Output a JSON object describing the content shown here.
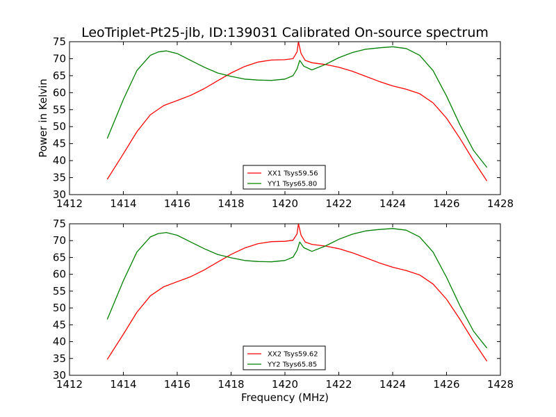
{
  "title": "LeoTriplet-Pt25-jlb, ID:139031 Calibrated On-source spectrum",
  "ylabel": "Power in Kelvin",
  "xlabel": "Frequency (MHz)",
  "colors": {
    "xx": "#ff0000",
    "yy": "#008000",
    "frame": "#000000"
  },
  "chart_data": [
    {
      "type": "line",
      "title": "LeoTriplet-Pt25-jlb, ID:139031 Calibrated On-source spectrum",
      "xlabel": "",
      "ylabel": "Power in Kelvin",
      "xlim": [
        1412,
        1428
      ],
      "ylim": [
        30,
        75
      ],
      "xticks": [
        "1412",
        "1414",
        "1416",
        "1418",
        "1420",
        "1422",
        "1424",
        "1426",
        "1428"
      ],
      "yticks": [
        "30",
        "35",
        "40",
        "45",
        "50",
        "55",
        "60",
        "65",
        "70",
        "75"
      ],
      "legend_position": "bottom-center",
      "series": [
        {
          "name": "XX1 Tsys59.56",
          "color": "#ff0000",
          "x": [
            1413.4,
            1414.0,
            1414.5,
            1415.0,
            1415.5,
            1416.0,
            1416.5,
            1417.0,
            1417.5,
            1418.0,
            1418.5,
            1419.0,
            1419.5,
            1420.0,
            1420.3,
            1420.45,
            1420.5,
            1420.6,
            1420.75,
            1421.0,
            1421.5,
            1422.0,
            1422.5,
            1423.0,
            1423.5,
            1424.0,
            1424.5,
            1425.0,
            1425.5,
            1426.0,
            1426.5,
            1427.0,
            1427.5
          ],
          "y": [
            34.5,
            42.0,
            48.5,
            53.5,
            56.2,
            57.7,
            59.2,
            61.2,
            63.5,
            65.8,
            67.7,
            69.0,
            69.6,
            69.7,
            70.0,
            72.0,
            75.0,
            71.5,
            69.5,
            68.8,
            68.3,
            67.5,
            66.3,
            64.8,
            63.3,
            62.0,
            61.0,
            59.7,
            57.0,
            52.5,
            46.5,
            40.0,
            34.0
          ]
        },
        {
          "name": "YY1 Tsys65.80",
          "color": "#008000",
          "x": [
            1413.4,
            1414.0,
            1414.5,
            1415.0,
            1415.3,
            1415.6,
            1416.0,
            1416.5,
            1417.0,
            1417.5,
            1418.0,
            1418.5,
            1419.0,
            1419.5,
            1420.0,
            1420.3,
            1420.45,
            1420.55,
            1420.7,
            1421.0,
            1421.5,
            1422.0,
            1422.5,
            1423.0,
            1423.5,
            1424.0,
            1424.5,
            1425.0,
            1425.5,
            1426.0,
            1426.5,
            1427.0,
            1427.5
          ],
          "y": [
            46.5,
            58.0,
            66.5,
            71.0,
            72.0,
            72.3,
            71.5,
            69.5,
            67.5,
            65.8,
            64.8,
            64.0,
            63.7,
            63.6,
            64.0,
            65.0,
            67.0,
            69.5,
            67.8,
            66.7,
            68.3,
            70.3,
            71.8,
            72.8,
            73.2,
            73.5,
            73.0,
            71.0,
            66.5,
            59.0,
            50.5,
            43.0,
            38.0
          ]
        }
      ]
    },
    {
      "type": "line",
      "title": "",
      "xlabel": "Frequency (MHz)",
      "ylabel": "",
      "xlim": [
        1412,
        1428
      ],
      "ylim": [
        30,
        75
      ],
      "xticks": [
        "1412",
        "1414",
        "1416",
        "1418",
        "1420",
        "1422",
        "1424",
        "1426",
        "1428"
      ],
      "yticks": [
        "30",
        "35",
        "40",
        "45",
        "50",
        "55",
        "60",
        "65",
        "70",
        "75"
      ],
      "legend_position": "bottom-center",
      "series": [
        {
          "name": "XX2 Tsys59.62",
          "color": "#ff0000",
          "x": [
            1413.4,
            1414.0,
            1414.5,
            1415.0,
            1415.5,
            1416.0,
            1416.5,
            1417.0,
            1417.5,
            1418.0,
            1418.5,
            1419.0,
            1419.5,
            1420.0,
            1420.3,
            1420.45,
            1420.5,
            1420.6,
            1420.75,
            1421.0,
            1421.5,
            1422.0,
            1422.5,
            1423.0,
            1423.5,
            1424.0,
            1424.5,
            1425.0,
            1425.5,
            1426.0,
            1426.5,
            1427.0,
            1427.5
          ],
          "y": [
            34.7,
            42.2,
            48.7,
            53.6,
            56.3,
            57.8,
            59.3,
            61.3,
            63.6,
            65.9,
            67.8,
            69.1,
            69.7,
            69.8,
            70.1,
            72.0,
            75.0,
            71.6,
            69.6,
            68.9,
            68.4,
            67.6,
            66.4,
            64.9,
            63.4,
            62.1,
            61.1,
            59.8,
            57.1,
            52.6,
            46.6,
            40.1,
            34.2
          ]
        },
        {
          "name": "YY2 Tsys65.85",
          "color": "#008000",
          "x": [
            1413.4,
            1414.0,
            1414.5,
            1415.0,
            1415.3,
            1415.6,
            1416.0,
            1416.5,
            1417.0,
            1417.5,
            1418.0,
            1418.5,
            1419.0,
            1419.5,
            1420.0,
            1420.3,
            1420.45,
            1420.55,
            1420.7,
            1421.0,
            1421.5,
            1422.0,
            1422.5,
            1423.0,
            1423.5,
            1424.0,
            1424.5,
            1425.0,
            1425.5,
            1426.0,
            1426.5,
            1427.0,
            1427.5
          ],
          "y": [
            46.6,
            58.1,
            66.6,
            71.1,
            72.1,
            72.4,
            71.6,
            69.6,
            67.6,
            65.9,
            64.9,
            64.1,
            63.8,
            63.7,
            64.1,
            65.1,
            67.1,
            69.6,
            67.9,
            66.8,
            68.4,
            70.4,
            71.9,
            72.9,
            73.3,
            73.6,
            73.1,
            71.1,
            66.6,
            59.1,
            50.6,
            43.1,
            38.1
          ]
        }
      ]
    }
  ]
}
